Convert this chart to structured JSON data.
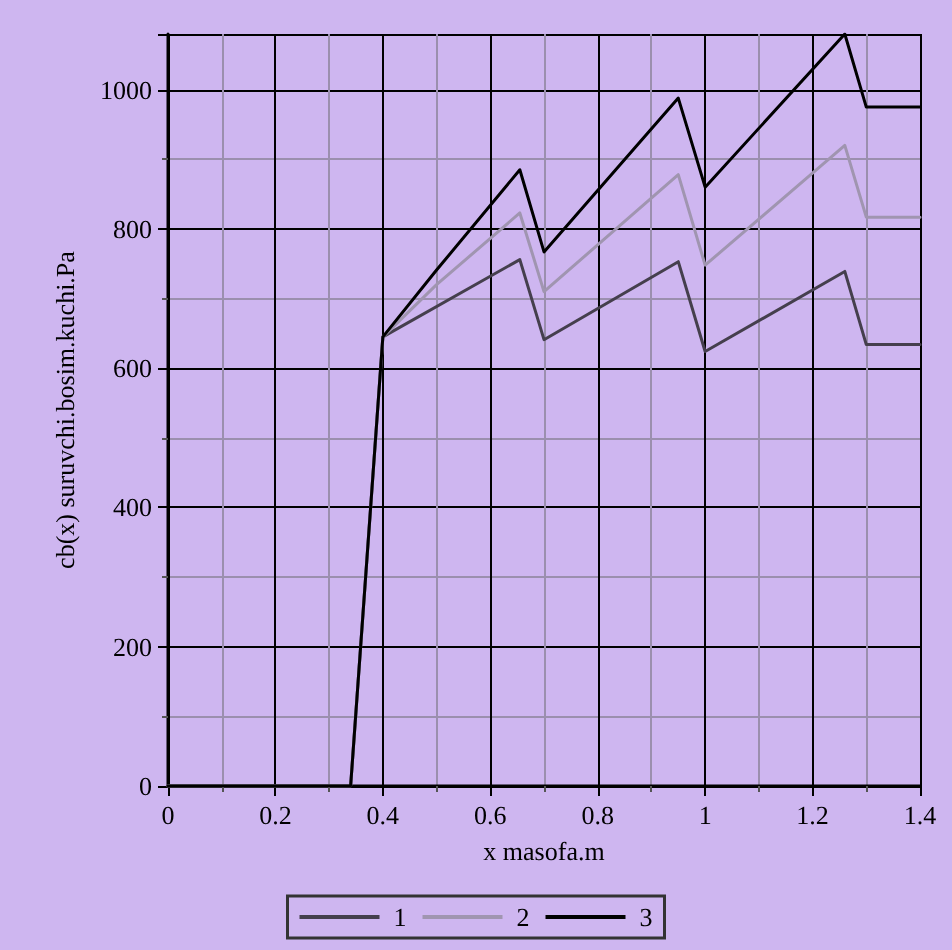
{
  "chart_data": {
    "type": "line",
    "xlabel": "x masofa.m",
    "ylabel": "cb(x) suruvchi.bosim.kuchi.Pa",
    "xlim": [
      0,
      1.4
    ],
    "xticks": [
      0,
      0.2,
      0.4,
      0.6,
      0.8,
      1,
      1.2,
      1.4
    ],
    "ylim": [
      0,
      1080
    ],
    "yticks": [
      0,
      200,
      400,
      600,
      800,
      1000
    ],
    "grid": true,
    "legend": "bottom",
    "marker": "none",
    "line_style": "solid",
    "series": [
      {
        "name": "1",
        "color": "#453f4d",
        "x": [
          0,
          0.34,
          0.4,
          0.655,
          0.7,
          0.95,
          1.0,
          1.26,
          1.3,
          1.4
        ],
        "values": [
          0,
          0,
          645,
          756,
          641,
          753,
          624,
          739,
          634,
          634
        ]
      },
      {
        "name": "2",
        "color": "#a095b0",
        "x": [
          0,
          0.34,
          0.4,
          0.5,
          0.655,
          0.7,
          0.95,
          1.0,
          1.26,
          1.3,
          1.4
        ],
        "values": [
          0,
          0,
          645,
          720,
          823,
          710,
          878,
          748,
          920,
          817,
          817
        ]
      },
      {
        "name": "3",
        "color": "#000000",
        "x": [
          0,
          0.34,
          0.4,
          0.5,
          0.655,
          0.7,
          0.95,
          1.0,
          1.26,
          1.3,
          1.4
        ],
        "values": [
          0,
          0,
          645,
          741,
          885,
          767,
          988,
          860,
          1080,
          975,
          975
        ]
      }
    ]
  }
}
